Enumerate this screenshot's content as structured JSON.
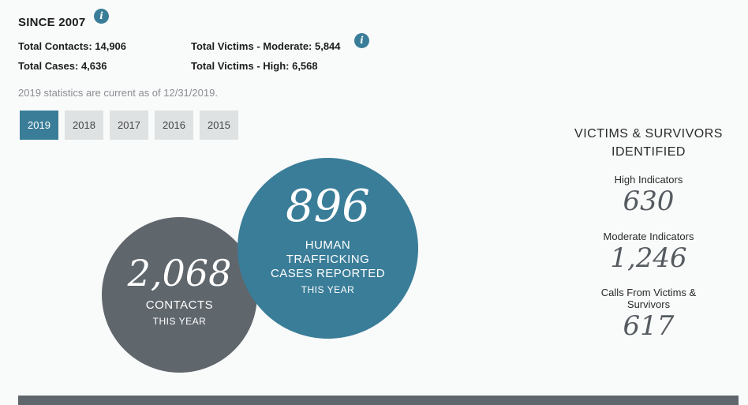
{
  "header": {
    "title": "SINCE 2007",
    "info_glyph": "i"
  },
  "totals": {
    "contacts": "Total Contacts: 14,906",
    "cases": "Total Cases: 4,636",
    "victims_moderate": "Total Victims - Moderate: 5,844",
    "victims_high": "Total Victims - High: 6,568"
  },
  "note": "2019 statistics are current as of 12/31/2019.",
  "tabs": [
    {
      "label": "2019",
      "active": true
    },
    {
      "label": "2018",
      "active": false
    },
    {
      "label": "2017",
      "active": false
    },
    {
      "label": "2016",
      "active": false
    },
    {
      "label": "2015",
      "active": false
    }
  ],
  "contacts_circle": {
    "number": "2,068",
    "label": "CONTACTS",
    "sub": "THIS YEAR"
  },
  "cases_circle": {
    "number": "896",
    "label_line1": "HUMAN",
    "label_line2": "TRAFFICKING",
    "label_line3": "CASES REPORTED",
    "sub": "THIS YEAR"
  },
  "side": {
    "title_line1": "VICTIMS & SURVIVORS",
    "title_line2": "IDENTIFIED",
    "high_label": "High Indicators",
    "high_value": "630",
    "moderate_label": "Moderate Indicators",
    "moderate_value": "1,246",
    "calls_label_line1": "Calls From Victims &",
    "calls_label_line2": "Survivors",
    "calls_value": "617"
  },
  "colors": {
    "accent": "#3a7d98",
    "dark": "#5f666c",
    "tab_bg": "#dfe2e3"
  }
}
